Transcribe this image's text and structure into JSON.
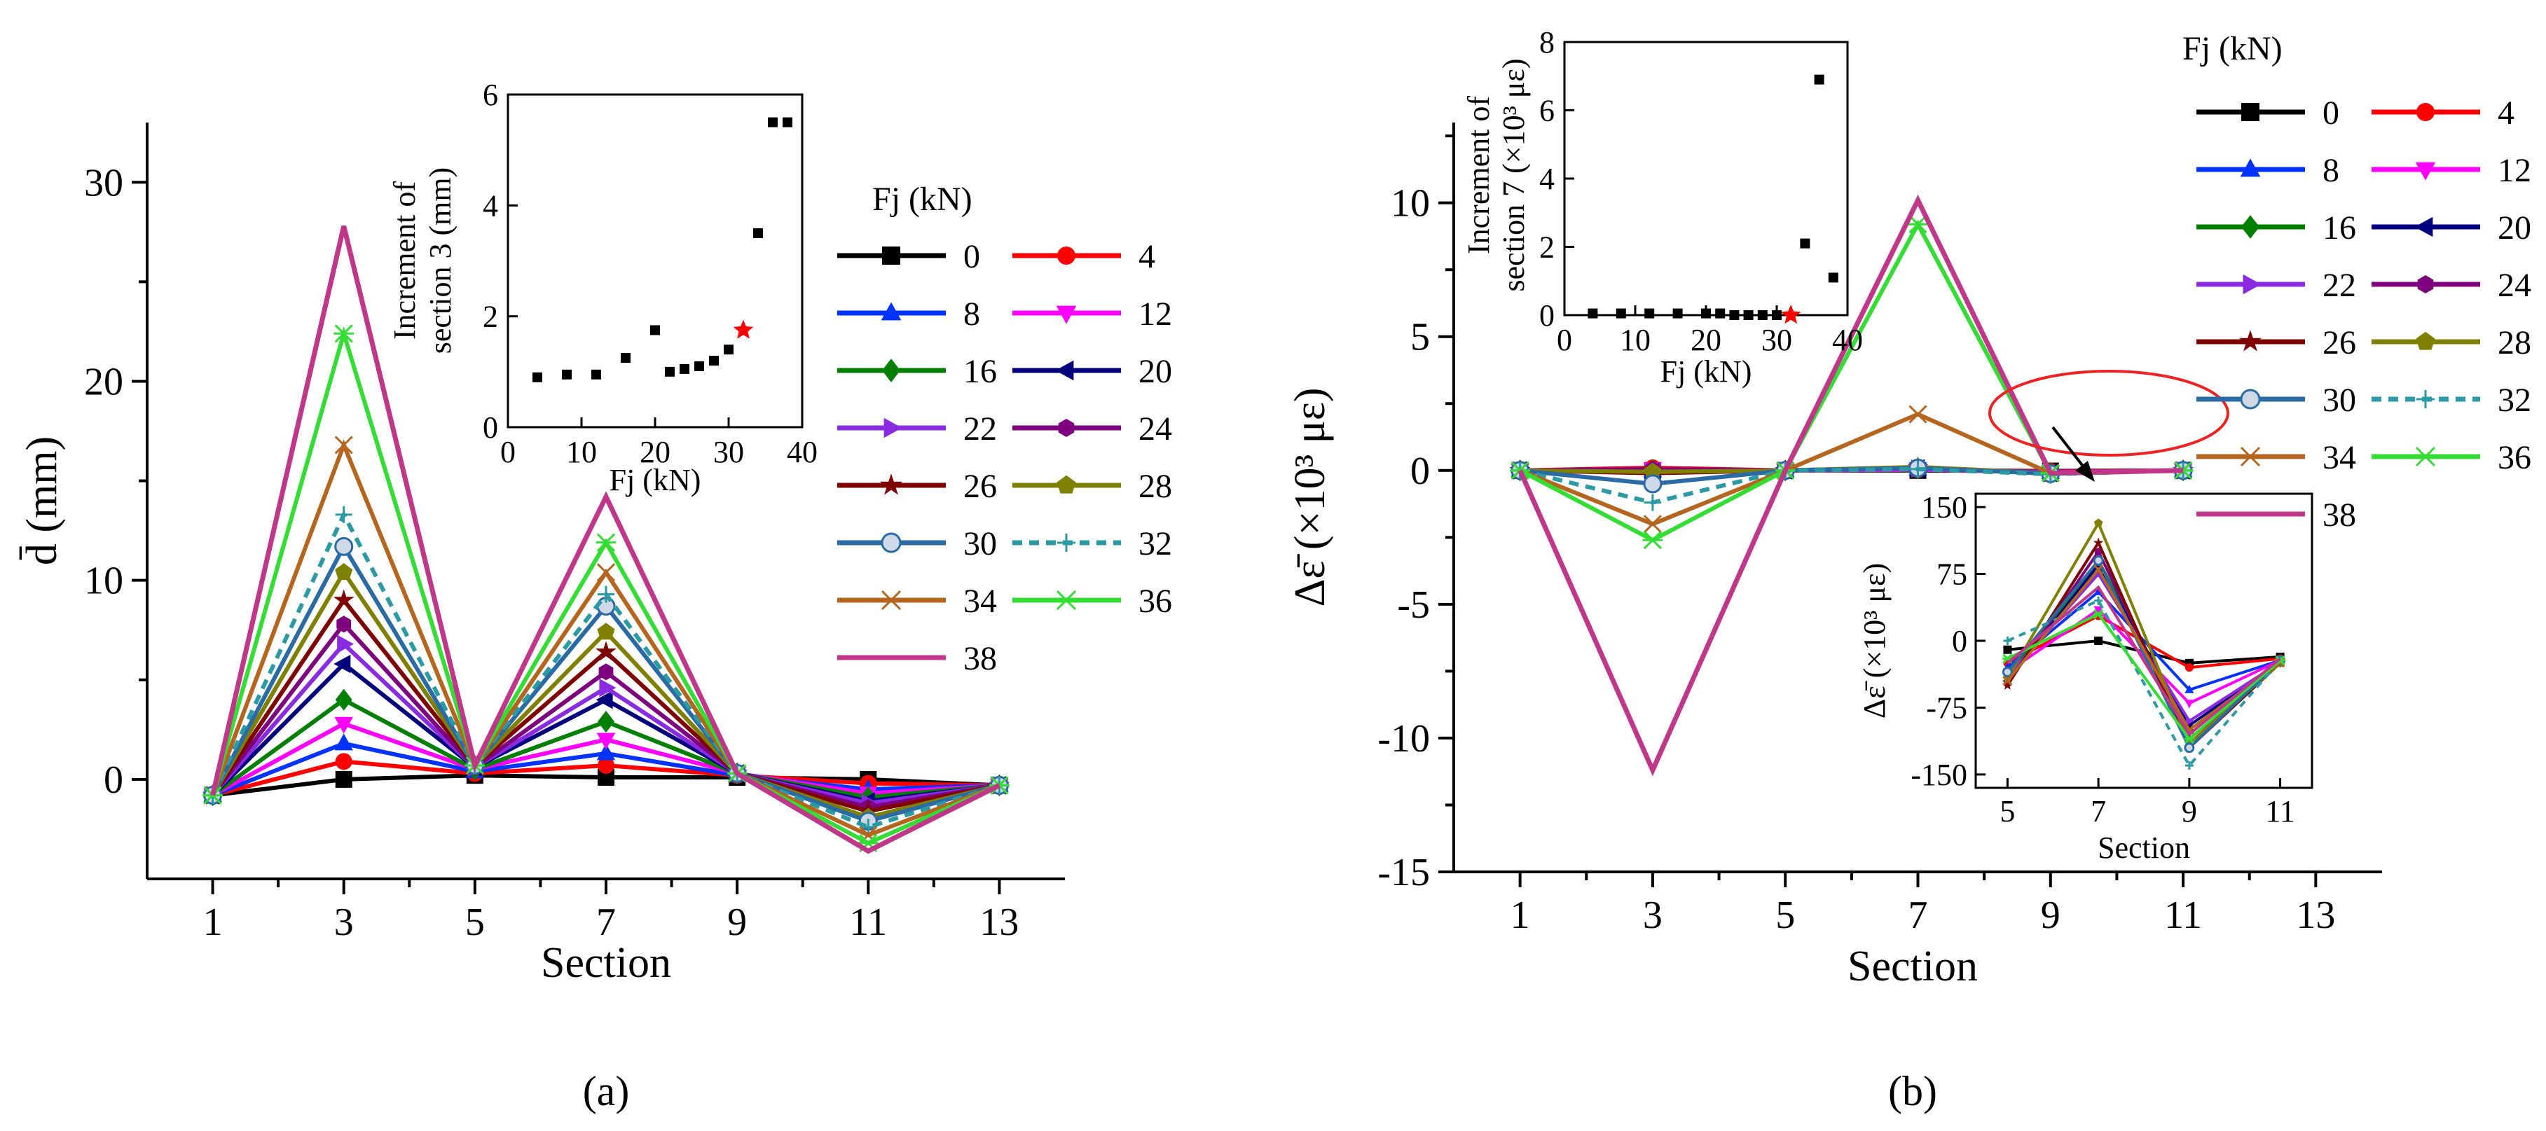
{
  "colors": {
    "0": "#000000",
    "4": "#ff0000",
    "8": "#0033ff",
    "12": "#ff00ff",
    "16": "#007f00",
    "20": "#00007f",
    "22": "#8a2be2",
    "24": "#7f007f",
    "26": "#7f0000",
    "28": "#808000",
    "30": "#2a6aa5",
    "32": "#2b9aa5",
    "34": "#b5651d",
    "36": "#33dd33",
    "38": "#c0378a"
  },
  "chart_data": [
    {
      "id": "a",
      "type": "line",
      "panel_label": "(a)",
      "xlabel": "Section",
      "ylabel": "d̄ (mm)",
      "xticks": [
        1,
        3,
        5,
        7,
        9,
        11,
        13
      ],
      "xlim": [
        0,
        14
      ],
      "ylim": [
        -5,
        33
      ],
      "yticks": [
        0,
        10,
        20,
        30
      ],
      "x": [
        1,
        3,
        5,
        7,
        9,
        11,
        13
      ],
      "legend_title": "Fj (kN)",
      "series": [
        {
          "name": "0",
          "marker": "square",
          "values": [
            -0.8,
            0.0,
            0.2,
            0.1,
            0.1,
            0.0,
            -0.3
          ]
        },
        {
          "name": "4",
          "marker": "circle",
          "values": [
            -0.8,
            0.9,
            0.3,
            0.7,
            0.2,
            -0.2,
            -0.3
          ]
        },
        {
          "name": "8",
          "marker": "triangle-up",
          "values": [
            -0.8,
            1.8,
            0.4,
            1.3,
            0.2,
            -0.5,
            -0.3
          ]
        },
        {
          "name": "12",
          "marker": "triangle-down",
          "values": [
            -0.8,
            2.8,
            0.5,
            2.0,
            0.3,
            -0.7,
            -0.3
          ]
        },
        {
          "name": "16",
          "marker": "diamond",
          "values": [
            -0.8,
            4.0,
            0.5,
            2.9,
            0.3,
            -0.9,
            -0.3
          ]
        },
        {
          "name": "20",
          "marker": "triangle-left",
          "values": [
            -0.8,
            5.8,
            0.6,
            4.0,
            0.3,
            -1.1,
            -0.3
          ]
        },
        {
          "name": "22",
          "marker": "triangle-right",
          "values": [
            -0.8,
            6.8,
            0.6,
            4.6,
            0.3,
            -1.2,
            -0.3
          ]
        },
        {
          "name": "24",
          "marker": "hexagon",
          "values": [
            -0.8,
            7.8,
            0.6,
            5.4,
            0.3,
            -1.4,
            -0.3
          ]
        },
        {
          "name": "26",
          "marker": "star",
          "values": [
            -0.8,
            9.0,
            0.7,
            6.4,
            0.3,
            -1.6,
            -0.3
          ]
        },
        {
          "name": "28",
          "marker": "pentagon",
          "values": [
            -0.8,
            10.4,
            0.7,
            7.4,
            0.3,
            -1.9,
            -0.3
          ]
        },
        {
          "name": "30",
          "marker": "circle-open",
          "values": [
            -0.8,
            11.7,
            0.7,
            8.7,
            0.3,
            -2.1,
            -0.3
          ]
        },
        {
          "name": "32",
          "marker": "plus",
          "dash": true,
          "values": [
            -0.8,
            13.3,
            0.7,
            9.3,
            0.3,
            -2.4,
            -0.3
          ]
        },
        {
          "name": "34",
          "marker": "x",
          "values": [
            -0.8,
            16.8,
            0.7,
            10.4,
            0.3,
            -2.8,
            -0.3
          ]
        },
        {
          "name": "36",
          "marker": "asterisk",
          "values": [
            -0.8,
            22.4,
            0.7,
            11.9,
            0.3,
            -3.2,
            -0.3
          ]
        },
        {
          "name": "38",
          "marker": "none",
          "values": [
            -0.8,
            27.8,
            0.7,
            14.2,
            0.3,
            -3.6,
            -0.3
          ]
        }
      ],
      "inset": {
        "type": "scatter",
        "xlabel": "Fj (kN)",
        "ylabel_line1": "Increment of",
        "ylabel_line2": "section 3 (mm)",
        "xlim": [
          0,
          40
        ],
        "ylim": [
          0,
          6
        ],
        "xticks": [
          0,
          10,
          20,
          30,
          40
        ],
        "yticks": [
          0,
          2,
          4,
          6
        ],
        "x": [
          4,
          8,
          12,
          16,
          20,
          22,
          24,
          26,
          28,
          30,
          32,
          34,
          36,
          38
        ],
        "y": [
          0.9,
          0.95,
          0.95,
          1.25,
          1.75,
          1.0,
          1.05,
          1.1,
          1.2,
          1.4,
          1.75,
          3.5,
          5.5,
          5.5
        ],
        "highlight_x": 32
      }
    },
    {
      "id": "b",
      "type": "line",
      "panel_label": "(b)",
      "xlabel": "Section",
      "ylabel": "Δε̄ (×10³ με)",
      "xticks": [
        1,
        3,
        5,
        7,
        9,
        11,
        13
      ],
      "xlim": [
        0,
        14
      ],
      "ylim": [
        -15,
        13
      ],
      "yticks": [
        -15,
        -10,
        -5,
        0,
        5,
        10
      ],
      "x": [
        1,
        3,
        5,
        7,
        9,
        11
      ],
      "legend_title": "Fj (kN)",
      "series": [
        {
          "name": "0",
          "marker": "square",
          "values": [
            0,
            0.0,
            0,
            0.0,
            -0.02,
            0
          ]
        },
        {
          "name": "4",
          "marker": "circle",
          "values": [
            0,
            0.1,
            0,
            0.03,
            -0.03,
            0
          ]
        },
        {
          "name": "8",
          "marker": "triangle-up",
          "values": [
            0,
            0.0,
            0,
            0.06,
            -0.06,
            0
          ]
        },
        {
          "name": "12",
          "marker": "triangle-down",
          "values": [
            0,
            0.05,
            0,
            0.03,
            -0.07,
            0
          ]
        },
        {
          "name": "16",
          "marker": "diamond",
          "values": [
            0,
            0.0,
            0,
            0.09,
            -0.1,
            0
          ]
        },
        {
          "name": "20",
          "marker": "triangle-left",
          "values": [
            0,
            -0.05,
            0,
            0.08,
            -0.09,
            0
          ]
        },
        {
          "name": "22",
          "marker": "triangle-right",
          "values": [
            0,
            -0.05,
            0,
            0.07,
            -0.09,
            0
          ]
        },
        {
          "name": "24",
          "marker": "hexagon",
          "values": [
            0,
            0.05,
            0,
            0.1,
            -0.11,
            0
          ]
        },
        {
          "name": "26",
          "marker": "star",
          "values": [
            0,
            -0.1,
            0,
            0.11,
            -0.12,
            0
          ]
        },
        {
          "name": "28",
          "marker": "pentagon",
          "values": [
            0,
            -0.05,
            0,
            0.13,
            -0.11,
            0
          ]
        },
        {
          "name": "30",
          "marker": "circle-open",
          "values": [
            0,
            -0.5,
            0,
            0.09,
            -0.12,
            0
          ]
        },
        {
          "name": "32",
          "marker": "plus",
          "dash": true,
          "values": [
            0,
            -1.2,
            0,
            0.05,
            -0.14,
            0
          ]
        },
        {
          "name": "34",
          "marker": "x",
          "values": [
            0,
            -2.0,
            0,
            2.1,
            -0.1,
            0
          ]
        },
        {
          "name": "36",
          "marker": "asterisk",
          "values": [
            0,
            -2.6,
            0,
            9.2,
            -0.1,
            0
          ]
        },
        {
          "name": "38",
          "marker": "none",
          "values": [
            0,
            -11.2,
            0,
            10.1,
            -0.1,
            0
          ]
        }
      ],
      "inset": {
        "type": "scatter",
        "xlabel": "Fj (kN)",
        "ylabel_line1": "Increment of",
        "ylabel_line2": "section 7 (×10³ με)",
        "xlim": [
          0,
          40
        ],
        "ylim": [
          0,
          8
        ],
        "xticks": [
          0,
          10,
          20,
          30,
          40
        ],
        "yticks": [
          0,
          2,
          4,
          6,
          8
        ],
        "x": [
          4,
          8,
          12,
          16,
          20,
          22,
          24,
          26,
          28,
          30,
          32,
          34,
          36,
          38
        ],
        "y": [
          0.05,
          0.05,
          0.05,
          0.05,
          0.05,
          0.05,
          0.0,
          0.0,
          0.0,
          0.0,
          0.0,
          2.1,
          6.9,
          1.1
        ],
        "highlight_x": 32
      },
      "zoom_inset": {
        "xlabel": "Section",
        "ylabel": "Δε̄ (×10³ με)",
        "xticks": [
          5,
          7,
          9,
          11
        ],
        "yticks": [
          -150,
          -75,
          0,
          75,
          150
        ],
        "xlim": [
          4.3,
          11.7
        ],
        "ylim": [
          -165,
          165
        ],
        "x": [
          5,
          7,
          9,
          11
        ],
        "series_values": {
          "0": [
            -10,
            0,
            -25,
            -18
          ],
          "4": [
            -25,
            28,
            -30,
            -20
          ],
          "8": [
            -30,
            55,
            -55,
            -22
          ],
          "12": [
            -35,
            35,
            -70,
            -22
          ],
          "16": [
            -40,
            90,
            -100,
            -24
          ],
          "20": [
            -45,
            85,
            -95,
            -24
          ],
          "22": [
            -40,
            75,
            -90,
            -24
          ],
          "24": [
            -48,
            100,
            -110,
            -25
          ],
          "26": [
            -50,
            110,
            -120,
            -25
          ],
          "28": [
            -42,
            132,
            -115,
            -25
          ],
          "30": [
            -35,
            90,
            -120,
            -22
          ],
          "32": [
            0,
            45,
            -140,
            -22
          ],
          "34": [
            -45,
            80,
            -100,
            -24
          ],
          "36": [
            -20,
            30,
            -110,
            -22
          ],
          "38": [
            -25,
            60,
            -105,
            -20
          ]
        }
      }
    }
  ]
}
